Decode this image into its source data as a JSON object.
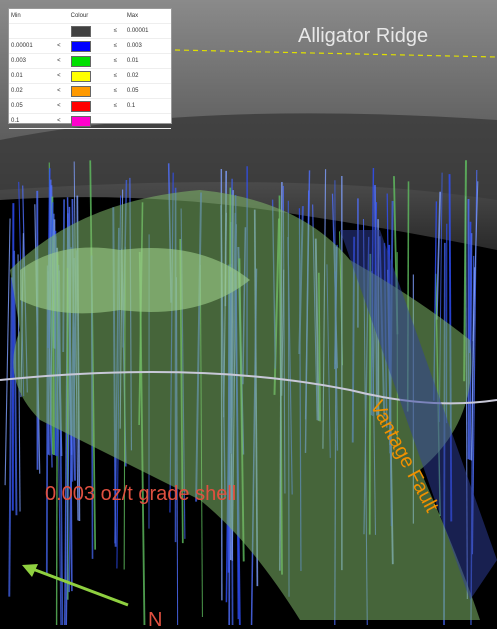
{
  "legend": {
    "headers": [
      "Min",
      "Colour",
      "Max"
    ],
    "rows": [
      {
        "op2": "≤",
        "max": "0.00001",
        "color": "#404040"
      },
      {
        "min": "0.00001",
        "op1": "<",
        "op2": "≤",
        "max": "0.003",
        "color": "#0000ff"
      },
      {
        "min": "0.003",
        "op1": "<",
        "op2": "≤",
        "max": "0.01",
        "color": "#00e000"
      },
      {
        "min": "0.01",
        "op1": "<",
        "op2": "≤",
        "max": "0.02",
        "color": "#ffff00"
      },
      {
        "min": "0.02",
        "op1": "<",
        "op2": "≤",
        "max": "0.05",
        "color": "#ff9900"
      },
      {
        "min": "0.05",
        "op1": "<",
        "op2": "≤",
        "max": "0.1",
        "color": "#ff0000"
      },
      {
        "min": "0.1",
        "op1": "<",
        "color": "#ff00cc"
      }
    ]
  },
  "labels": {
    "ridge": "Alligator Ridge",
    "fault": "Vantage Fault",
    "shell": "0.003 oz/t grade shell",
    "north": "N"
  }
}
